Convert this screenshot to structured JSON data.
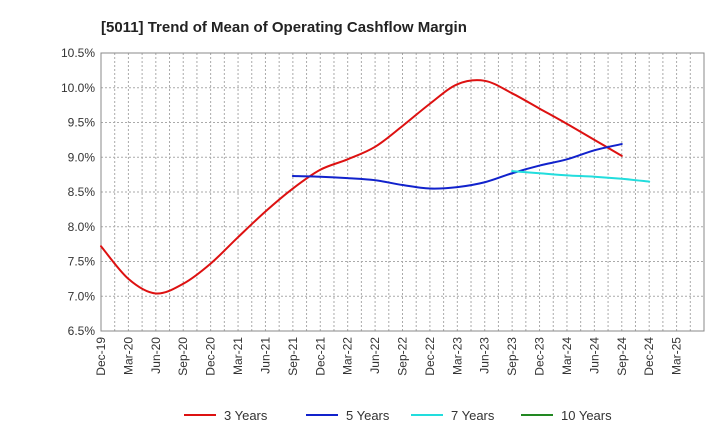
{
  "chart_data": {
    "type": "line",
    "title": "[5011]  Trend of Mean of Operating Cashflow Margin",
    "xlabel": "",
    "ylabel": "",
    "x_ticks": [
      "Dec-19",
      "Mar-20",
      "Jun-20",
      "Sep-20",
      "Dec-20",
      "Mar-21",
      "Jun-21",
      "Sep-21",
      "Dec-21",
      "Mar-22",
      "Jun-22",
      "Sep-22",
      "Dec-22",
      "Mar-23",
      "Jun-23",
      "Sep-23",
      "Dec-23",
      "Mar-24",
      "Jun-24",
      "Sep-24",
      "Dec-24",
      "Mar-25"
    ],
    "y_ticks": [
      6.5,
      7.0,
      7.5,
      8.0,
      8.5,
      9.0,
      9.5,
      10.0,
      10.5
    ],
    "y_tick_labels": [
      "6.5%",
      "7.0%",
      "7.5%",
      "8.0%",
      "8.5%",
      "9.0%",
      "9.5%",
      "10.0%",
      "10.5%"
    ],
    "ylim": [
      6.5,
      10.5
    ],
    "grid": true,
    "legend_position": "bottom",
    "series": [
      {
        "name": "3 Years",
        "color": "#dd1111",
        "start_index": 0,
        "values": [
          7.72,
          7.25,
          7.04,
          7.18,
          7.47,
          7.85,
          8.22,
          8.55,
          8.82,
          8.97,
          9.15,
          9.45,
          9.77,
          10.05,
          10.1,
          9.92,
          9.7,
          9.48,
          9.25,
          9.02
        ]
      },
      {
        "name": "5 Years",
        "color": "#1122cc",
        "start_index": 7,
        "values": [
          8.73,
          8.72,
          8.7,
          8.67,
          8.6,
          8.55,
          8.57,
          8.64,
          8.77,
          8.88,
          8.97,
          9.1,
          9.19
        ]
      },
      {
        "name": "7 Years",
        "color": "#22dddd",
        "start_index": 15,
        "values": [
          8.8,
          8.77,
          8.74,
          8.72,
          8.69,
          8.65
        ]
      },
      {
        "name": "10 Years",
        "color": "#228822",
        "start_index": 0,
        "values": []
      }
    ]
  }
}
